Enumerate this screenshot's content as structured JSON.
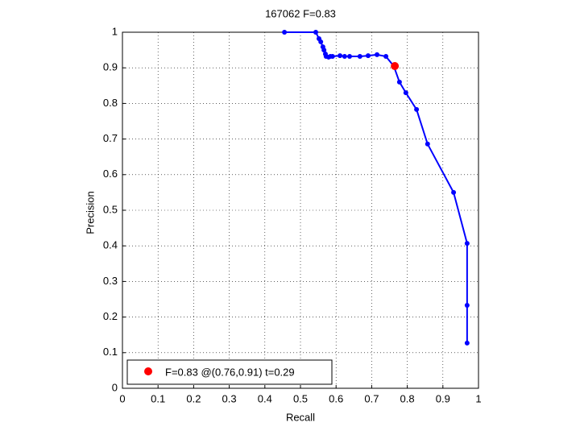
{
  "chart_data": {
    "type": "line",
    "title": "167062 F=0.83",
    "x_label": "Recall",
    "y_label": "Precision",
    "x": [
      0.455,
      0.543,
      0.552,
      0.557,
      0.563,
      0.566,
      0.57,
      0.572,
      0.579,
      0.584,
      0.59,
      0.611,
      0.624,
      0.638,
      0.667,
      0.69,
      0.715,
      0.74,
      0.762,
      0.778,
      0.796,
      0.826,
      0.857,
      0.93,
      0.968,
      0.968,
      0.968
    ],
    "series": [
      {
        "color": "#0000ff",
        "values": [
          1.0,
          1.0,
          0.982,
          0.973,
          0.959,
          0.95,
          0.939,
          0.932,
          0.93,
          0.932,
          0.932,
          0.934,
          0.932,
          0.932,
          0.932,
          0.934,
          0.937,
          0.932,
          0.905,
          0.86,
          0.83,
          0.783,
          0.686,
          0.55,
          0.407,
          0.233,
          0.127
        ]
      }
    ],
    "best": {
      "x": 0.765,
      "y": 0.905,
      "color": "#ff0000",
      "label": "F=0.83 @(0.76,0.91) t=0.29"
    },
    "xlim": [
      0,
      1
    ],
    "ylim": [
      0,
      1
    ],
    "xticks": [
      0,
      0.1,
      0.2,
      0.3,
      0.4,
      0.5,
      0.6,
      0.7,
      0.8,
      0.9,
      1
    ],
    "yticks": [
      0,
      0.1,
      0.2,
      0.3,
      0.4,
      0.5,
      0.6,
      0.7,
      0.8,
      0.9,
      1
    ],
    "grid": true
  }
}
